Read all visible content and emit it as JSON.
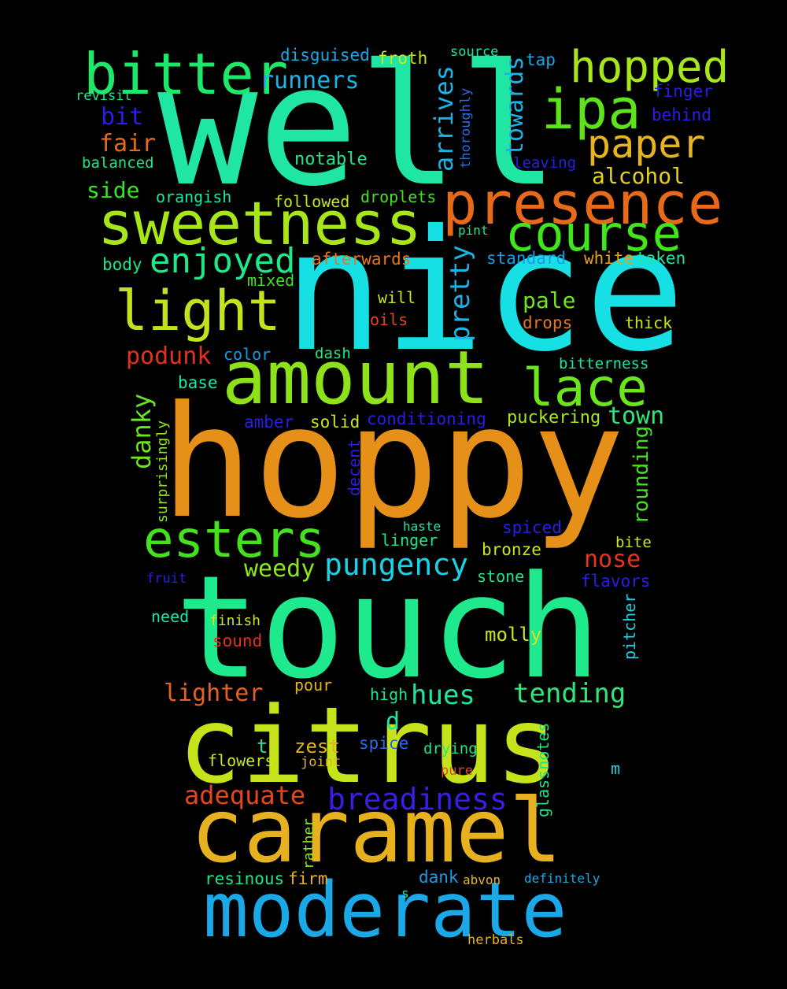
{
  "words": [
    {
      "text": "well",
      "color": "#1fe6a2"
    },
    {
      "text": "nice",
      "color": "#16e0e4"
    },
    {
      "text": "hoppy",
      "color": "#e6901a"
    },
    {
      "text": "touch",
      "color": "#1ee98c"
    },
    {
      "text": "citrus",
      "color": "#c6e21a"
    },
    {
      "text": "caramel",
      "color": "#e6b01e"
    },
    {
      "text": "moderate",
      "color": "#1aa8e6"
    },
    {
      "text": "amount",
      "color": "#8ee21a"
    },
    {
      "text": "presence",
      "color": "#e66a1a"
    },
    {
      "text": "sweetness",
      "color": "#a8e61a"
    },
    {
      "text": "bitter",
      "color": "#1ee86a"
    },
    {
      "text": "ipa",
      "color": "#5ee21a"
    },
    {
      "text": "hopped",
      "color": "#a6e61a"
    },
    {
      "text": "course",
      "color": "#3ee61a"
    },
    {
      "text": "light",
      "color": "#c2e21e"
    },
    {
      "text": "lace",
      "color": "#6ae61a"
    },
    {
      "text": "esters",
      "color": "#44e21e"
    },
    {
      "text": "paper",
      "color": "#e6b41e"
    },
    {
      "text": "enjoyed",
      "color": "#1ee88a"
    },
    {
      "text": "pungency",
      "color": "#1ad2e6"
    },
    {
      "text": "breadiness",
      "color": "#3a1ee6"
    },
    {
      "text": "adequate",
      "color": "#e6461e"
    },
    {
      "text": "tending",
      "color": "#2ee67a"
    },
    {
      "text": "hues",
      "color": "#1ee6a0"
    },
    {
      "text": "lighter",
      "color": "#e6621e"
    },
    {
      "text": "weedy",
      "color": "#8ee61e"
    },
    {
      "text": "nose",
      "color": "#e6321e"
    },
    {
      "text": "town",
      "color": "#2ee67a"
    },
    {
      "text": "podunk",
      "color": "#e6301e"
    },
    {
      "text": "runners",
      "color": "#1ab4e6"
    },
    {
      "text": "alcohol",
      "color": "#e6d01e"
    },
    {
      "text": "pale",
      "color": "#6ee61e"
    },
    {
      "text": "fair",
      "color": "#e66a1e"
    },
    {
      "text": "side",
      "color": "#34e61e"
    },
    {
      "text": "bit",
      "color": "#2a1ee6"
    },
    {
      "text": "d",
      "color": "#1ee6a6"
    },
    {
      "text": "molly",
      "color": "#c8e61e"
    },
    {
      "text": "zest",
      "color": "#e6b41e"
    },
    {
      "text": "t",
      "color": "#1ee6a0"
    },
    {
      "text": "notable",
      "color": "#1ee686"
    },
    {
      "text": "disguised",
      "color": "#1aa8e6"
    },
    {
      "text": "froth",
      "color": "#c8e61e"
    },
    {
      "text": "afterwards",
      "color": "#e6761e"
    },
    {
      "text": "standard",
      "color": "#1a9ae6"
    },
    {
      "text": "taken",
      "color": "#1ee6a6"
    },
    {
      "text": "white",
      "color": "#e6a01e"
    },
    {
      "text": "finger",
      "color": "#2a1ee6"
    },
    {
      "text": "behind",
      "color": "#2a1ee6"
    },
    {
      "text": "tap",
      "color": "#1aa8e6"
    },
    {
      "text": "source",
      "color": "#1ee6a0"
    },
    {
      "text": "revisit",
      "color": "#1ee68a"
    },
    {
      "text": "balanced",
      "color": "#1ee686"
    },
    {
      "text": "orangish",
      "color": "#1ee6a6"
    },
    {
      "text": "followed",
      "color": "#c8e61e"
    },
    {
      "text": "droplets",
      "color": "#44e21e"
    },
    {
      "text": "leaving",
      "color": "#2a1ee6"
    },
    {
      "text": "pint",
      "color": "#1ee68a"
    },
    {
      "text": "body",
      "color": "#1ee686"
    },
    {
      "text": "mixed",
      "color": "#44e21e"
    },
    {
      "text": "will",
      "color": "#c8e61e"
    },
    {
      "text": "oils",
      "color": "#e6461e"
    },
    {
      "text": "drops",
      "color": "#e6761e"
    },
    {
      "text": "thick",
      "color": "#c8e61e"
    },
    {
      "text": "color",
      "color": "#1a9ae6"
    },
    {
      "text": "dash",
      "color": "#1ee686"
    },
    {
      "text": "bitterness",
      "color": "#1ee6a0"
    },
    {
      "text": "base",
      "color": "#1ee6a6"
    },
    {
      "text": "amber",
      "color": "#2a1ee6"
    },
    {
      "text": "solid",
      "color": "#c8e61e"
    },
    {
      "text": "conditioning",
      "color": "#2a1ee6"
    },
    {
      "text": "puckering",
      "color": "#a8e61e"
    },
    {
      "text": "spiced",
      "color": "#2a1ee6"
    },
    {
      "text": "haste",
      "color": "#1ee6a6"
    },
    {
      "text": "linger",
      "color": "#1ee686"
    },
    {
      "text": "bronze",
      "color": "#c8e61e"
    },
    {
      "text": "bite",
      "color": "#c8e61e"
    },
    {
      "text": "fruit",
      "color": "#2a1ee6"
    },
    {
      "text": "stone",
      "color": "#1ee686"
    },
    {
      "text": "flavors",
      "color": "#2a1ee6"
    },
    {
      "text": "need",
      "color": "#1ee6a0"
    },
    {
      "text": "finish",
      "color": "#c8e61e"
    },
    {
      "text": "sound",
      "color": "#e6301e"
    },
    {
      "text": "pour",
      "color": "#e6b41e"
    },
    {
      "text": "high",
      "color": "#1ee686"
    },
    {
      "text": "spice",
      "color": "#2a6ae6"
    },
    {
      "text": "drying",
      "color": "#1ee686"
    },
    {
      "text": "flowers",
      "color": "#c8e61e"
    },
    {
      "text": "joint",
      "color": "#e6b41e"
    },
    {
      "text": "pure",
      "color": "#e6461e"
    },
    {
      "text": "m",
      "color": "#1ad2e6"
    },
    {
      "text": "resinous",
      "color": "#1ee686"
    },
    {
      "text": "firm",
      "color": "#e6b41e"
    },
    {
      "text": "dank",
      "color": "#1a9ae6"
    },
    {
      "text": "abvon",
      "color": "#e6b41e"
    },
    {
      "text": "definitely",
      "color": "#1aa8e6"
    },
    {
      "text": "s",
      "color": "#1ee6a0"
    },
    {
      "text": "herbals",
      "color": "#e6b41e"
    },
    {
      "text": "arrives",
      "color": "#1ab4e6"
    },
    {
      "text": "thoroughly",
      "color": "#2a6ae6"
    },
    {
      "text": "towards",
      "color": "#1ab4e6"
    },
    {
      "text": "pretty",
      "color": "#1ab4e6"
    },
    {
      "text": "danky",
      "color": "#6ae61e"
    },
    {
      "text": "surprisingly",
      "color": "#8ee61e"
    },
    {
      "text": "decent",
      "color": "#2a1ee6"
    },
    {
      "text": "rounding",
      "color": "#44e21e"
    },
    {
      "text": "pitcher",
      "color": "#1ad2e6"
    },
    {
      "text": "glassnotes",
      "color": "#1ee686"
    },
    {
      "text": "rather",
      "color": "#8ee61e"
    }
  ]
}
